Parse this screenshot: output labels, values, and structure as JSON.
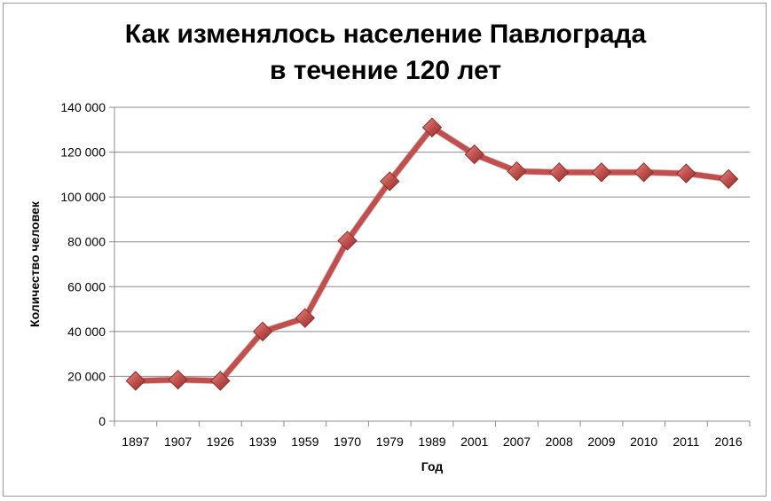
{
  "chart_data": {
    "type": "line",
    "title_lines": [
      "Как изменялось население Павлограда",
      "в течение 120 лет"
    ],
    "xlabel": "Год",
    "ylabel": "Количество человек",
    "categories": [
      "1897",
      "1907",
      "1926",
      "1939",
      "1959",
      "1970",
      "1979",
      "1989",
      "2001",
      "2007",
      "2008",
      "2009",
      "2010",
      "2011",
      "2016"
    ],
    "values": [
      18000,
      18500,
      18000,
      40000,
      46000,
      80500,
      107000,
      131000,
      119000,
      111500,
      111000,
      111000,
      111000,
      110500,
      108000
    ],
    "ylim": [
      0,
      140000
    ],
    "yticks": [
      0,
      20000,
      40000,
      60000,
      80000,
      100000,
      120000,
      140000
    ],
    "ytick_labels": [
      "0",
      "20 000",
      "40 000",
      "60 000",
      "80 000",
      "100 000",
      "120 000",
      "140 000"
    ],
    "grid": "horizontal",
    "legend": "none",
    "colors": {
      "line": "#c0504d",
      "marker": "#c0504d",
      "marker_edge": "#8c2d2a",
      "grid": "#8c8c8c"
    }
  }
}
